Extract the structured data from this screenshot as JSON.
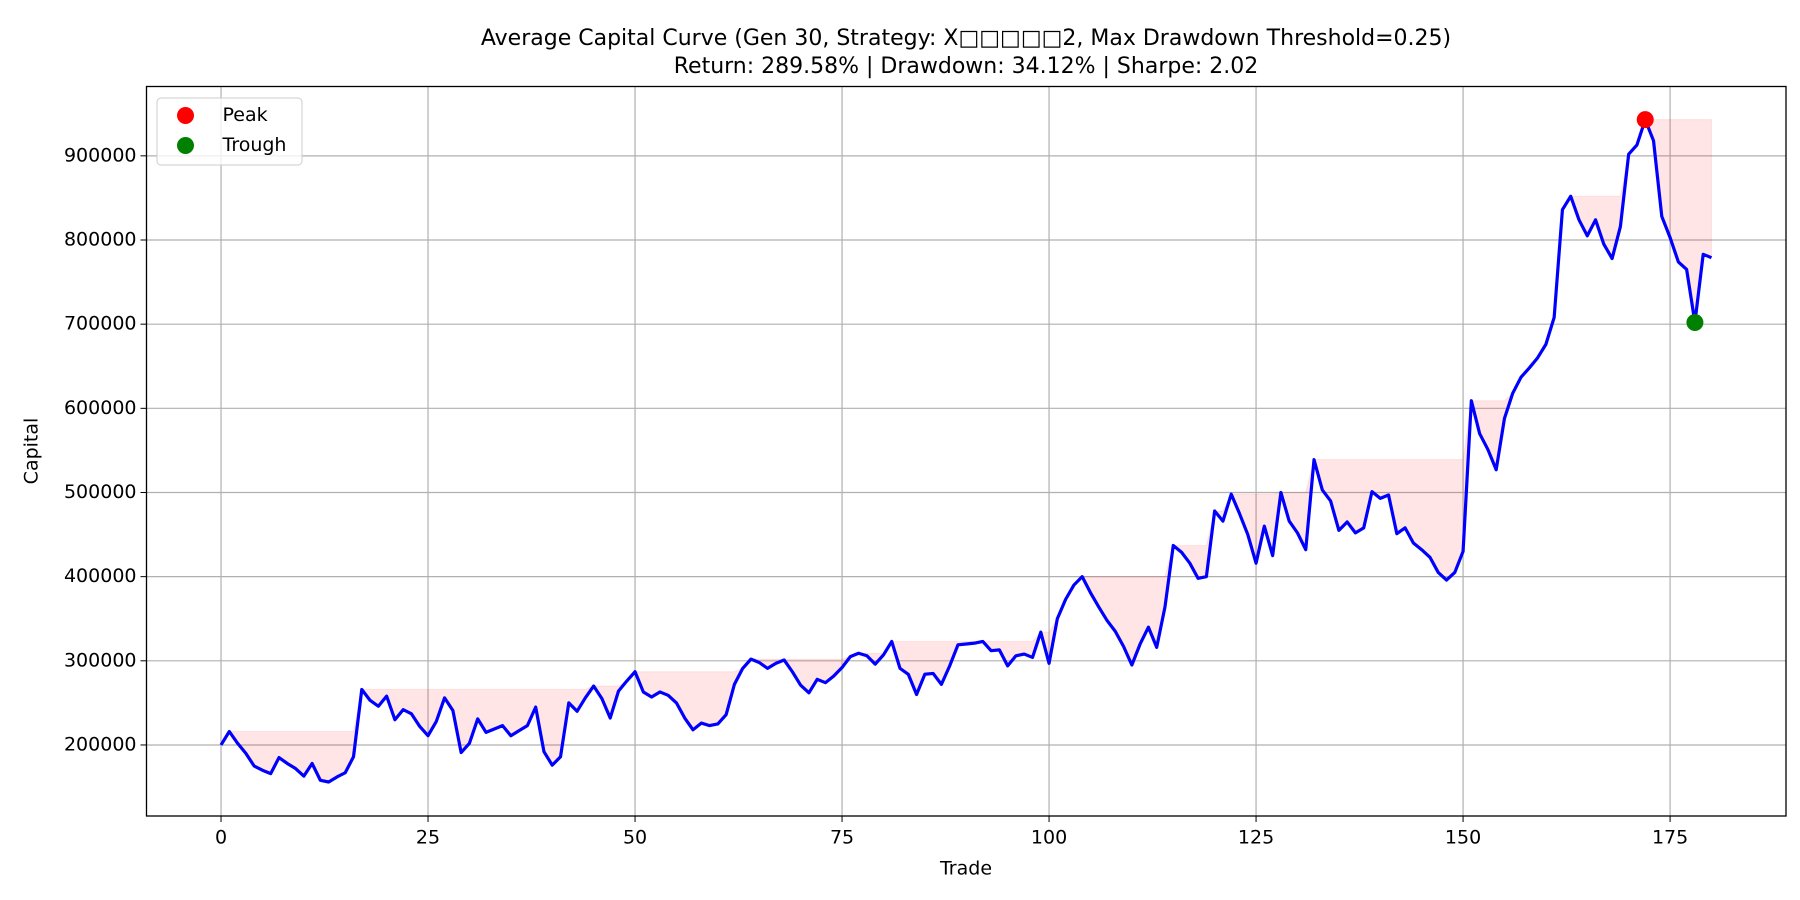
{
  "chart_data": {
    "type": "line",
    "title": "Average Capital Curve (Gen 30, Strategy: X□□□□□2, Max Drawdown Threshold=0.25)",
    "subtitle": "Return: 289.58% | Drawdown: 34.12% | Sharpe: 2.02",
    "x_label": "Trade",
    "y_label": "Capital",
    "x": [
      0,
      1,
      2,
      3,
      4,
      5,
      6,
      7,
      8,
      9,
      10,
      11,
      12,
      13,
      14,
      15,
      16,
      17,
      18,
      19,
      20,
      21,
      22,
      23,
      24,
      25,
      26,
      27,
      28,
      29,
      30,
      31,
      32,
      33,
      34,
      35,
      36,
      37,
      38,
      39,
      40,
      41,
      42,
      43,
      44,
      45,
      46,
      47,
      48,
      49,
      50,
      51,
      52,
      53,
      54,
      55,
      56,
      57,
      58,
      59,
      60,
      61,
      62,
      63,
      64,
      65,
      66,
      67,
      68,
      69,
      70,
      71,
      72,
      73,
      74,
      75,
      76,
      77,
      78,
      79,
      80,
      81,
      82,
      83,
      84,
      85,
      86,
      87,
      88,
      89,
      90,
      91,
      92,
      93,
      94,
      95,
      96,
      97,
      98,
      99,
      100,
      101,
      102,
      103,
      104,
      105,
      106,
      107,
      108,
      109,
      110,
      111,
      112,
      113,
      114,
      115,
      116,
      117,
      118,
      119,
      120,
      121,
      122,
      123,
      124,
      125,
      126,
      127,
      128,
      129,
      130,
      131,
      132,
      133,
      134,
      135,
      136,
      137,
      138,
      139,
      140,
      141,
      142,
      143,
      144,
      145,
      146,
      147,
      148,
      149,
      150,
      151,
      152,
      153,
      154,
      155,
      156,
      157,
      158,
      159,
      160,
      161,
      162,
      163,
      164,
      165,
      166,
      167,
      168,
      169,
      170,
      171,
      172,
      173,
      174,
      175,
      176,
      177,
      178,
      179,
      180
    ],
    "series": [
      {
        "color": "#0000ff",
        "values": [
          200000,
          216000,
          202000,
          190000,
          175000,
          170000,
          166000,
          185000,
          178000,
          172000,
          163000,
          178000,
          158000,
          156000,
          162000,
          167000,
          186000,
          266000,
          253000,
          246000,
          258000,
          230000,
          242000,
          237000,
          222000,
          211000,
          228000,
          256000,
          241000,
          191000,
          202000,
          231000,
          215000,
          219000,
          223000,
          211000,
          217000,
          223000,
          245000,
          192000,
          176000,
          186000,
          250000,
          240000,
          256000,
          270000,
          255000,
          232000,
          264000,
          276000,
          287000,
          263000,
          257000,
          263000,
          259000,
          250000,
          232000,
          218000,
          226000,
          223000,
          225000,
          236000,
          272000,
          291000,
          302000,
          298000,
          291000,
          297000,
          301000,
          287000,
          271000,
          262000,
          278000,
          274000,
          282000,
          292000,
          305000,
          309000,
          306000,
          296000,
          307000,
          323000,
          291000,
          284000,
          260000,
          284000,
          285000,
          272000,
          294000,
          319000,
          320000,
          321000,
          323000,
          312000,
          313000,
          294000,
          306000,
          308000,
          304000,
          334000,
          297000,
          350000,
          373000,
          390000,
          400000,
          381000,
          364000,
          348000,
          335000,
          317000,
          295000,
          320000,
          340000,
          316000,
          364000,
          437000,
          429000,
          416000,
          398000,
          400000,
          478000,
          466000,
          498000,
          475000,
          450000,
          416000,
          460000,
          425000,
          500000,
          466000,
          452000,
          432000,
          539000,
          503000,
          490000,
          455000,
          465000,
          452000,
          458000,
          501000,
          493000,
          497000,
          451000,
          458000,
          440000,
          432000,
          423000,
          405000,
          396000,
          405000,
          430000,
          609000,
          570000,
          551000,
          527000,
          588000,
          618000,
          637000,
          648000,
          660000,
          676000,
          708000,
          836000,
          852000,
          824000,
          805000,
          824000,
          795000,
          778000,
          816000,
          902000,
          913000,
          943000,
          918000,
          828000,
          803000,
          774000,
          765000,
          702000,
          783000,
          779000
        ]
      }
    ],
    "markers": [
      {
        "name": "Peak",
        "color": "#ff0000",
        "x": 172
      },
      {
        "name": "Trough",
        "color": "#008000",
        "x": 178
      }
    ],
    "drawdown_color": "#ff0000",
    "xlim": [
      -9,
      189
    ],
    "xticks": [
      0,
      25,
      50,
      75,
      100,
      125,
      150,
      175
    ],
    "ylim": [
      115600,
      982400
    ],
    "yticks": [
      200000,
      300000,
      400000,
      500000,
      600000,
      700000,
      800000,
      900000
    ],
    "grid": true,
    "legend": "upper left"
  }
}
